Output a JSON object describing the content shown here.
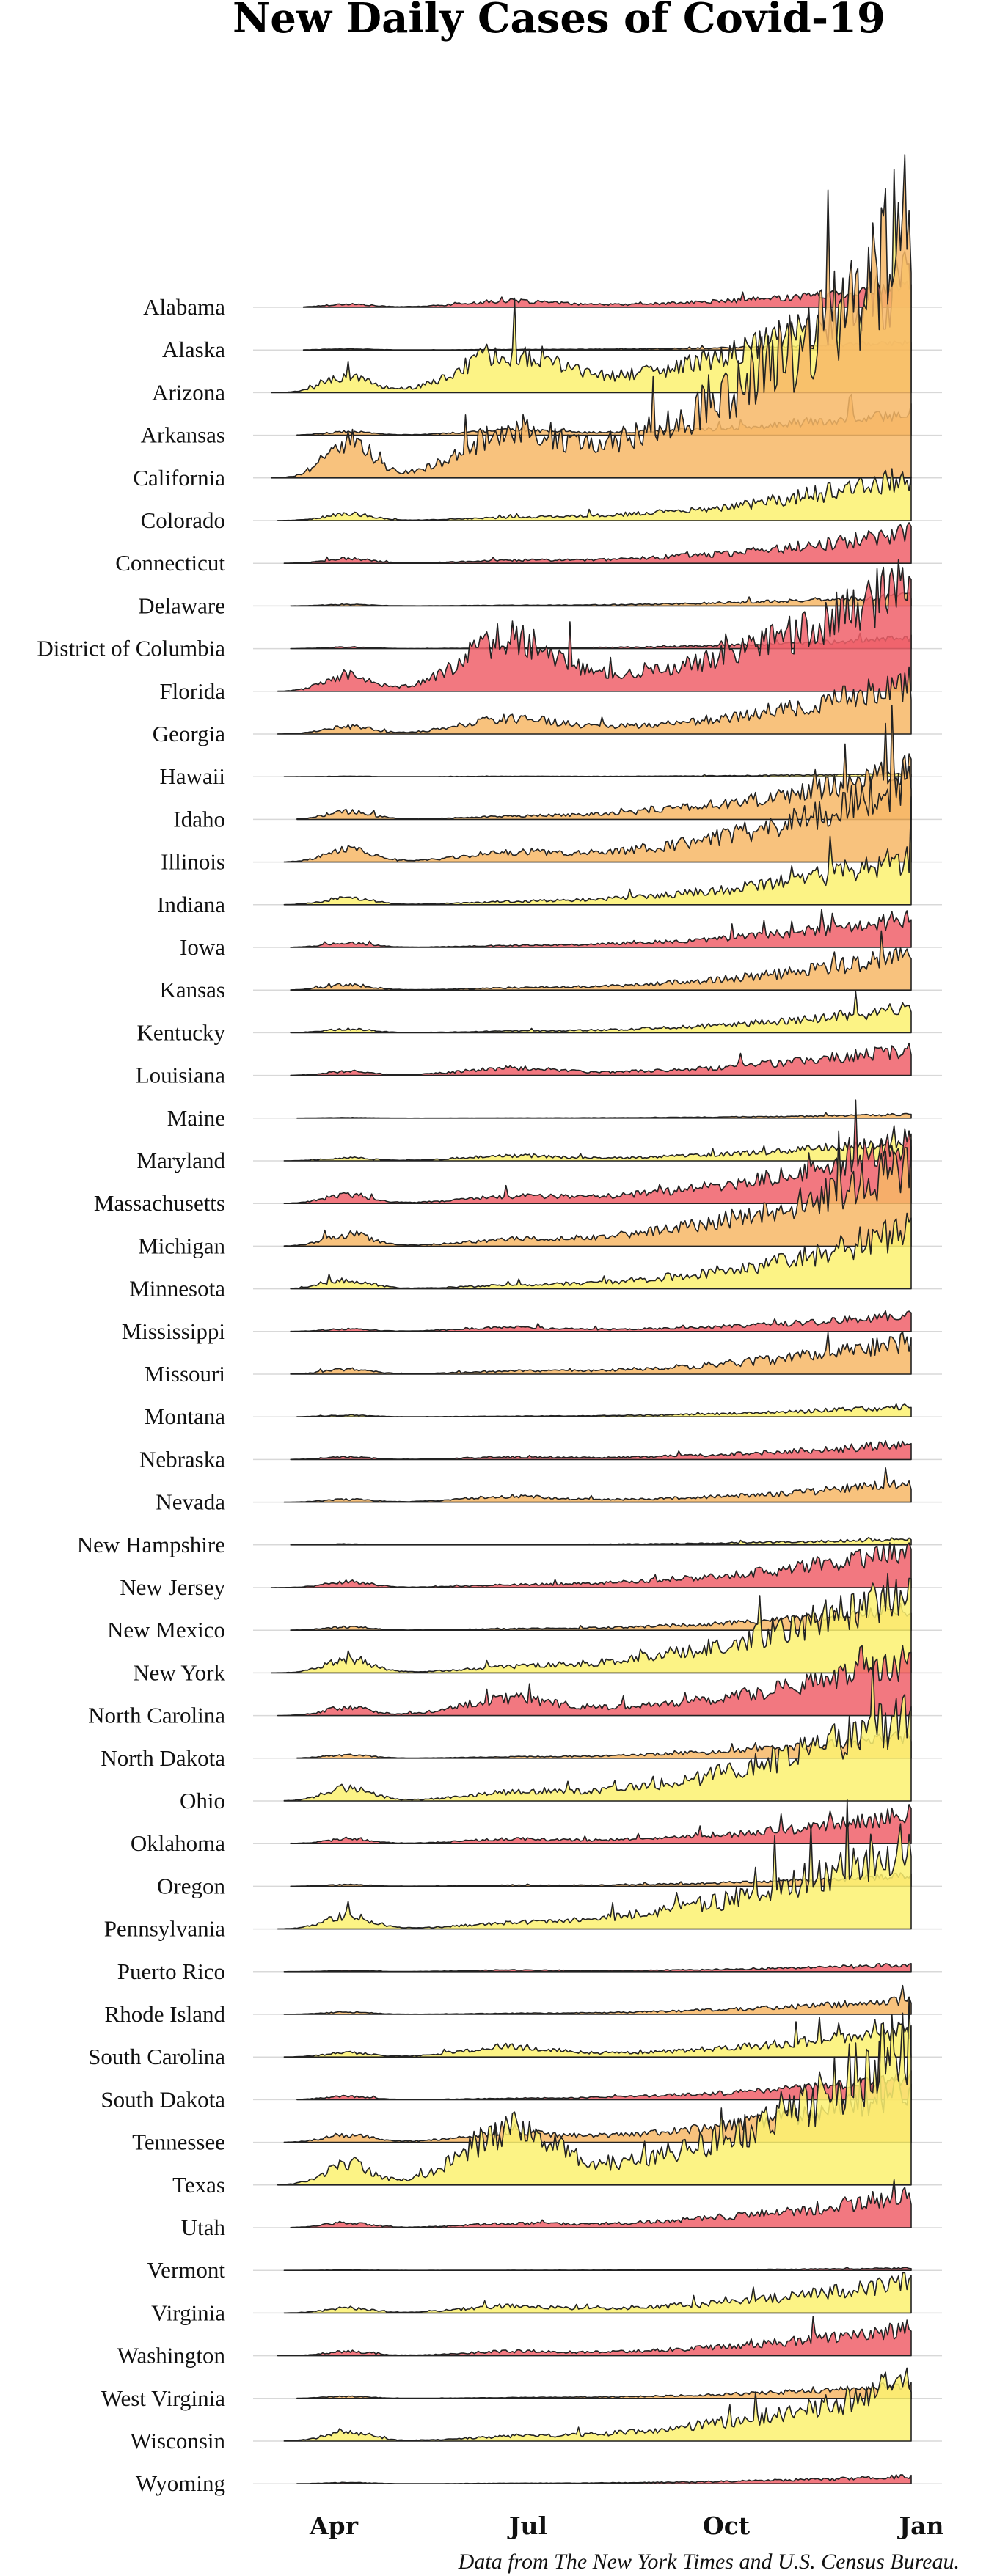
{
  "chart_data": {
    "type": "area",
    "title": "New Daily Cases of Covid-19",
    "source": "Data from The New York Times and U.S. Census Bureau.",
    "x_ticks": [
      "Apr",
      "Jul",
      "Oct",
      "Jan"
    ],
    "x_range": [
      "2020-03-01",
      "2021-01-03"
    ],
    "colors": {
      "red": "#f0606a",
      "orange": "#f7b766",
      "yellow": "#fbf170"
    },
    "grid": true,
    "series": [
      {
        "name": "Alabama",
        "color": "red",
        "start": 0.05,
        "peak": 0.95,
        "amp": 28,
        "summer": 0.45,
        "spike": 0.0
      },
      {
        "name": "Alaska",
        "color": "orange",
        "start": 0.05,
        "peak": 0.95,
        "amp": 10,
        "summer": 0.05,
        "spike": 0.0
      },
      {
        "name": "Arizona",
        "color": "yellow",
        "start": 0.0,
        "peak": 0.98,
        "amp": 150,
        "summer": 0.55,
        "spike": 0.0
      },
      {
        "name": "Arkansas",
        "color": "orange",
        "start": 0.04,
        "peak": 0.95,
        "amp": 32,
        "summer": 0.3,
        "spike": 0.0
      },
      {
        "name": "California",
        "color": "orange",
        "start": 0.0,
        "peak": 0.99,
        "amp": 340,
        "summer": 0.25,
        "spike": 0.0
      },
      {
        "name": "Colorado",
        "color": "yellow",
        "start": 0.01,
        "peak": 0.9,
        "amp": 60,
        "summer": 0.05,
        "spike": 0.0
      },
      {
        "name": "Connecticut",
        "color": "red",
        "start": 0.02,
        "peak": 0.93,
        "amp": 42,
        "summer": 0.1,
        "spike": 0.0
      },
      {
        "name": "Delaware",
        "color": "orange",
        "start": 0.03,
        "peak": 0.96,
        "amp": 14,
        "summer": 0.05,
        "spike": 0.0
      },
      {
        "name": "District of Columbia",
        "color": "red",
        "start": 0.03,
        "peak": 0.95,
        "amp": 14,
        "summer": 0.05,
        "spike": 0.0
      },
      {
        "name": "Florida",
        "color": "red",
        "start": 0.01,
        "peak": 0.97,
        "amp": 150,
        "summer": 0.75,
        "spike": 0.0
      },
      {
        "name": "Georgia",
        "color": "orange",
        "start": 0.01,
        "peak": 0.97,
        "amp": 70,
        "summer": 0.45,
        "spike": 0.0
      },
      {
        "name": "Hawaii",
        "color": "yellow",
        "start": 0.02,
        "peak": 0.8,
        "amp": 4,
        "summer": 0.2,
        "spike": 0.0
      },
      {
        "name": "Idaho",
        "color": "orange",
        "start": 0.04,
        "peak": 0.86,
        "amp": 70,
        "summer": 0.05,
        "spike": 0.0
      },
      {
        "name": "Illinois",
        "color": "orange",
        "start": 0.02,
        "peak": 0.85,
        "amp": 110,
        "summer": 0.15,
        "spike": 0.0
      },
      {
        "name": "Indiana",
        "color": "yellow",
        "start": 0.02,
        "peak": 0.87,
        "amp": 65,
        "summer": 0.05,
        "spike": 0.0
      },
      {
        "name": "Iowa",
        "color": "red",
        "start": 0.03,
        "peak": 0.82,
        "amp": 40,
        "summer": 0.05,
        "spike": 0.0
      },
      {
        "name": "Kansas",
        "color": "orange",
        "start": 0.03,
        "peak": 0.87,
        "amp": 48,
        "summer": 0.05,
        "spike": 0.0
      },
      {
        "name": "Kentucky",
        "color": "yellow",
        "start": 0.03,
        "peak": 0.95,
        "amp": 34,
        "summer": 0.05,
        "spike": 0.0
      },
      {
        "name": "Louisiana",
        "color": "red",
        "start": 0.03,
        "peak": 0.93,
        "amp": 36,
        "summer": 0.4,
        "spike": 0.0
      },
      {
        "name": "Maine",
        "color": "orange",
        "start": 0.04,
        "peak": 0.96,
        "amp": 5,
        "summer": 0.05,
        "spike": 0.0
      },
      {
        "name": "Maryland",
        "color": "yellow",
        "start": 0.02,
        "peak": 0.94,
        "amp": 28,
        "summer": 0.35,
        "spike": 0.0
      },
      {
        "name": "Massachusetts",
        "color": "red",
        "start": 0.02,
        "peak": 0.96,
        "amp": 80,
        "summer": 0.15,
        "spike": 0.0
      },
      {
        "name": "Michigan",
        "color": "orange",
        "start": 0.02,
        "peak": 0.86,
        "amp": 110,
        "summer": 0.08,
        "spike": 0.0
      },
      {
        "name": "Minnesota",
        "color": "yellow",
        "start": 0.03,
        "peak": 0.84,
        "amp": 80,
        "summer": 0.05,
        "spike": 0.0
      },
      {
        "name": "Mississippi",
        "color": "red",
        "start": 0.03,
        "peak": 0.95,
        "amp": 22,
        "summer": 0.35,
        "spike": 0.0
      },
      {
        "name": "Missouri",
        "color": "orange",
        "start": 0.03,
        "peak": 0.85,
        "amp": 45,
        "summer": 0.1,
        "spike": 0.0
      },
      {
        "name": "Montana",
        "color": "yellow",
        "start": 0.04,
        "peak": 0.85,
        "amp": 14,
        "summer": 0.05,
        "spike": 0.0
      },
      {
        "name": "Nebraska",
        "color": "red",
        "start": 0.03,
        "peak": 0.84,
        "amp": 22,
        "summer": 0.2,
        "spike": 0.0
      },
      {
        "name": "Nevada",
        "color": "orange",
        "start": 0.02,
        "peak": 0.9,
        "amp": 26,
        "summer": 0.45,
        "spike": 0.0
      },
      {
        "name": "New Hampshire",
        "color": "yellow",
        "start": 0.03,
        "peak": 0.95,
        "amp": 8,
        "summer": 0.05,
        "spike": 0.0
      },
      {
        "name": "New Jersey",
        "color": "red",
        "start": 0.0,
        "peak": 0.96,
        "amp": 52,
        "summer": 0.05,
        "spike": 0.0
      },
      {
        "name": "New Mexico",
        "color": "orange",
        "start": 0.03,
        "peak": 0.88,
        "amp": 30,
        "summer": 0.05,
        "spike": 0.0
      },
      {
        "name": "New York",
        "color": "yellow",
        "start": 0.0,
        "peak": 0.98,
        "amp": 120,
        "summer": 0.05,
        "spike": 0.0
      },
      {
        "name": "North Carolina",
        "color": "red",
        "start": 0.01,
        "peak": 0.97,
        "amp": 75,
        "summer": 0.45,
        "spike": 0.0
      },
      {
        "name": "North Dakota",
        "color": "orange",
        "start": 0.04,
        "peak": 0.84,
        "amp": 30,
        "summer": 0.05,
        "spike": 0.0
      },
      {
        "name": "Ohio",
        "color": "yellow",
        "start": 0.02,
        "peak": 0.9,
        "amp": 120,
        "summer": 0.1,
        "spike": 0.0
      },
      {
        "name": "Oklahoma",
        "color": "red",
        "start": 0.03,
        "peak": 0.95,
        "amp": 40,
        "summer": 0.2,
        "spike": 0.0
      },
      {
        "name": "Oregon",
        "color": "orange",
        "start": 0.03,
        "peak": 0.9,
        "amp": 15,
        "summer": 0.1,
        "spike": 0.0
      },
      {
        "name": "Pennsylvania",
        "color": "yellow",
        "start": 0.01,
        "peak": 0.92,
        "amp": 120,
        "summer": 0.05,
        "spike": 0.0
      },
      {
        "name": "Puerto Rico",
        "color": "red",
        "start": 0.02,
        "peak": 0.8,
        "amp": 10,
        "summer": 0.3,
        "spike": 0.0
      },
      {
        "name": "Rhode Island",
        "color": "orange",
        "start": 0.02,
        "peak": 0.93,
        "amp": 20,
        "summer": 0.05,
        "spike": 0.0
      },
      {
        "name": "South Carolina",
        "color": "yellow",
        "start": 0.02,
        "peak": 0.97,
        "amp": 38,
        "summer": 0.55,
        "spike": 0.0
      },
      {
        "name": "South Dakota",
        "color": "red",
        "start": 0.04,
        "peak": 0.82,
        "amp": 30,
        "summer": 0.05,
        "spike": 0.0
      },
      {
        "name": "Tennessee",
        "color": "orange",
        "start": 0.02,
        "peak": 0.95,
        "amp": 70,
        "summer": 0.25,
        "spike": 0.0
      },
      {
        "name": "Texas",
        "color": "yellow",
        "start": 0.01,
        "peak": 0.97,
        "amp": 200,
        "summer": 0.55,
        "spike": 0.0
      },
      {
        "name": "Utah",
        "color": "red",
        "start": 0.03,
        "peak": 0.88,
        "amp": 45,
        "summer": 0.15,
        "spike": 0.0
      },
      {
        "name": "Vermont",
        "color": "red",
        "start": 0.02,
        "peak": 0.9,
        "amp": 3,
        "summer": 0.05,
        "spike": 0.0
      },
      {
        "name": "Virginia",
        "color": "yellow",
        "start": 0.02,
        "peak": 0.97,
        "amp": 44,
        "summer": 0.3,
        "spike": 0.0
      },
      {
        "name": "Washington",
        "color": "red",
        "start": 0.01,
        "peak": 0.92,
        "amp": 38,
        "summer": 0.2,
        "spike": 0.0
      },
      {
        "name": "West Virginia",
        "color": "orange",
        "start": 0.04,
        "peak": 0.96,
        "amp": 18,
        "summer": 0.05,
        "spike": 0.0
      },
      {
        "name": "Wisconsin",
        "color": "yellow",
        "start": 0.02,
        "peak": 0.82,
        "amp": 80,
        "summer": 0.08,
        "spike": 0.0
      },
      {
        "name": "Wyoming",
        "color": "red",
        "start": 0.04,
        "peak": 0.85,
        "amp": 10,
        "summer": 0.05,
        "spike": 0.0
      }
    ]
  }
}
